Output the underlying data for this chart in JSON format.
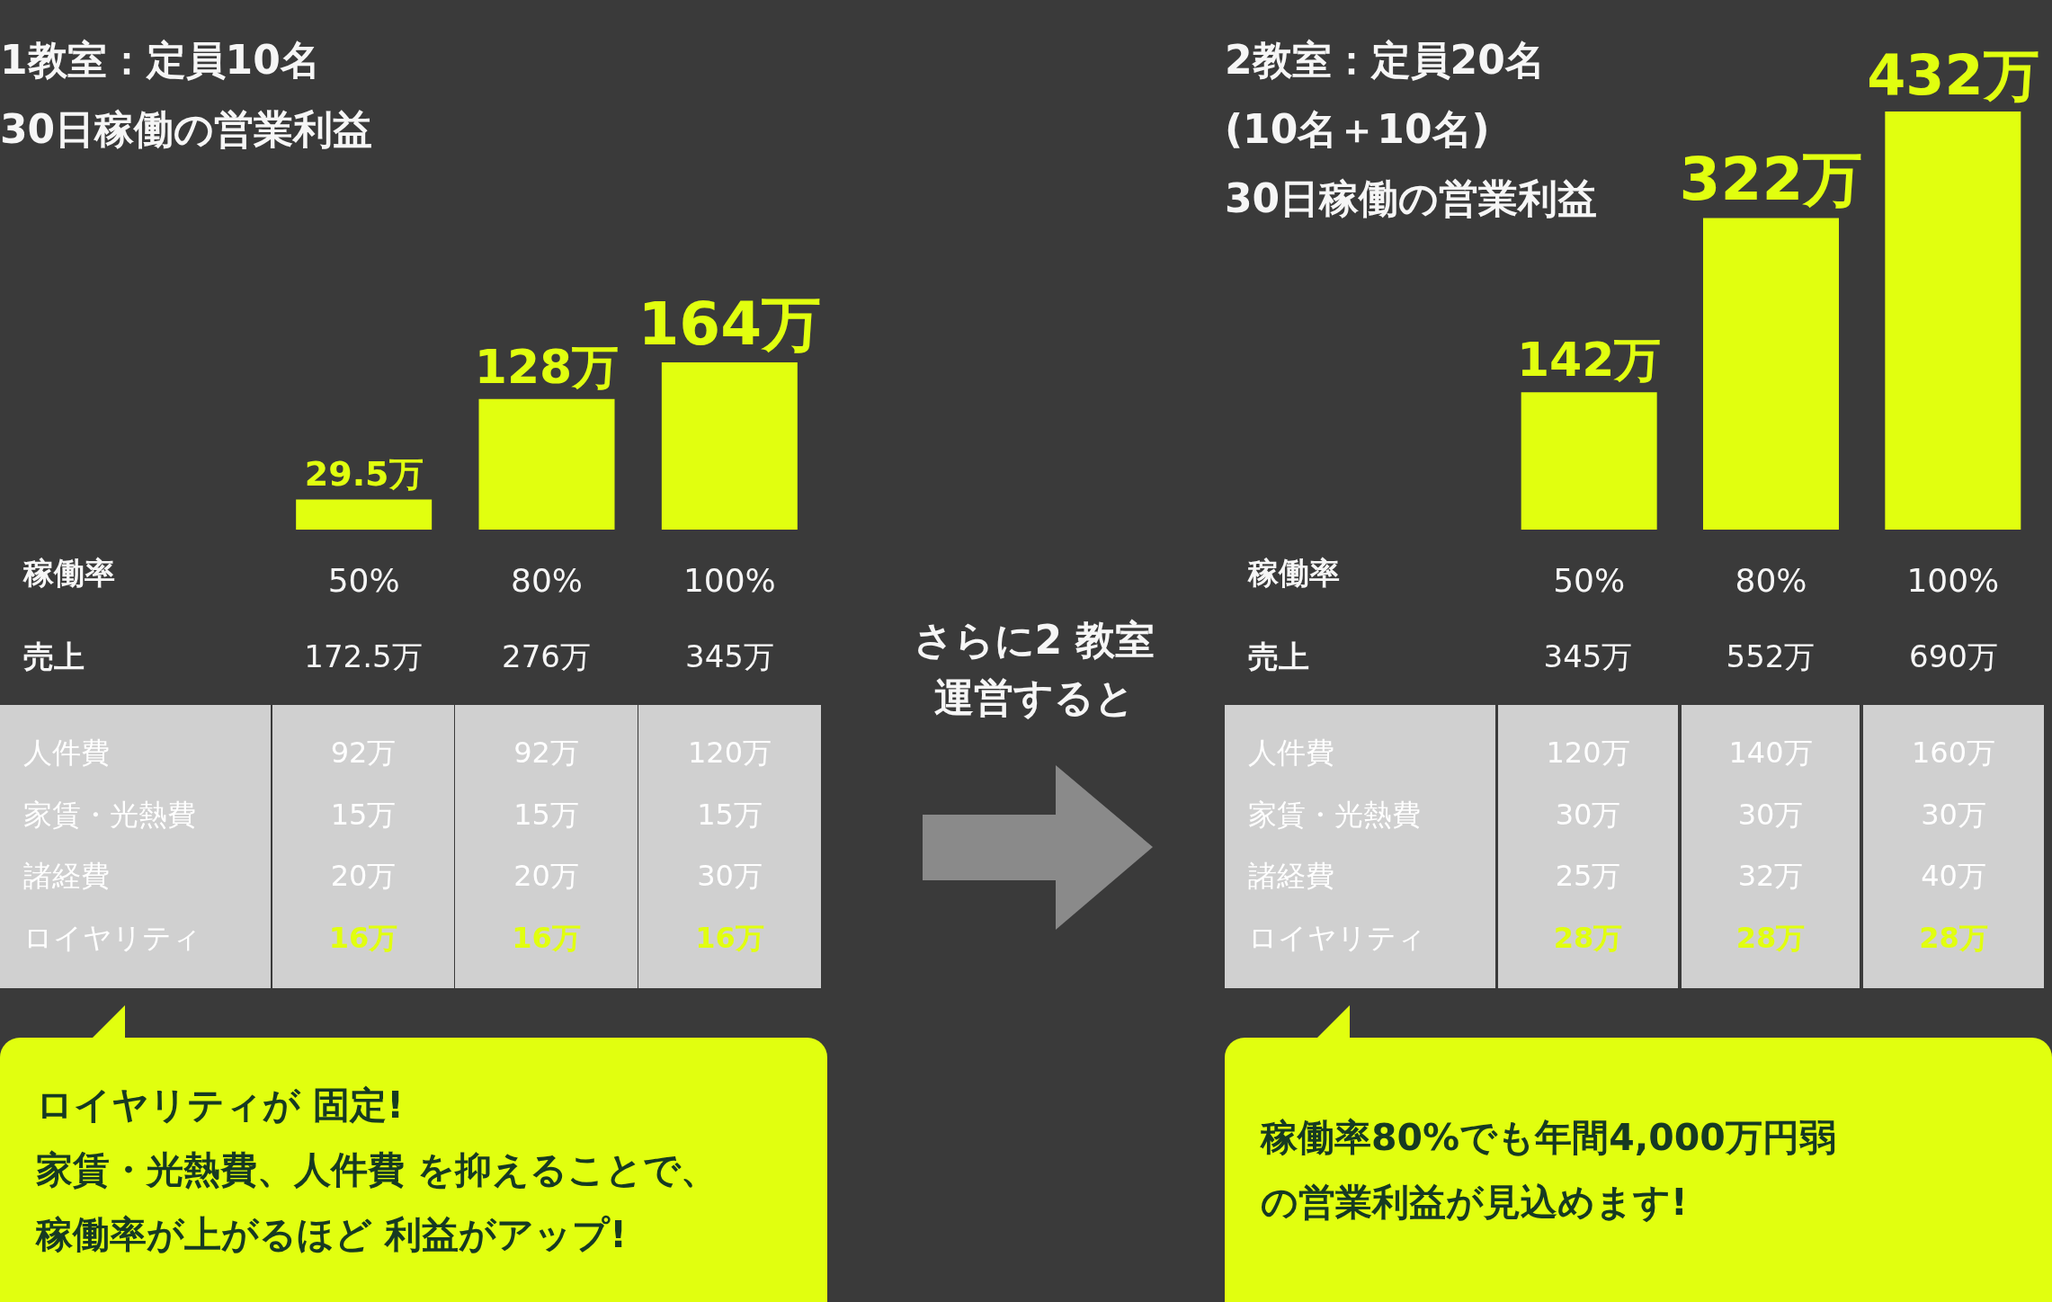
{
  "chart_data": [
    {
      "type": "bar",
      "title": "1教室：定員10名\n30日稼働の営業利益",
      "xlabel": "稼働率",
      "categories": [
        "50%",
        "80%",
        "100%"
      ],
      "values": [
        29.5,
        128,
        164
      ],
      "color": "#e1ff0f",
      "value_labels": [
        "29.5万",
        "128万",
        "164万"
      ],
      "annotations": [
        "売上",
        "172.5万",
        "276万",
        "345万",
        "人件費",
        "92万",
        "92万",
        "120万",
        "家賃・光熱費",
        "15万",
        "15万",
        "15万",
        "諸経費",
        "20万",
        "20万",
        "30万",
        "ロイヤリティ",
        "16万",
        "16万",
        "16万",
        "ロイヤリティが 固定!",
        "家賃・光熱費、人件費 を抑えることで、",
        "稼働率が上がるほど 利益がアップ!"
      ]
    },
    {
      "type": "other",
      "title": "さらに2 教室",
      "subtitle": "運営すると"
    },
    {
      "type": "bar",
      "title": "2教室：定員20名\n(10名＋10名)\n30日稼働の営業利益",
      "xlabel": "稼働率",
      "categories": [
        "50%",
        "80%",
        "100%"
      ],
      "values": [
        142,
        322,
        432
      ],
      "color": "#e1ff0f",
      "value_labels": [
        "142万",
        "322万",
        "432万"
      ],
      "annotations": [
        "売上",
        "345万",
        "552万",
        "690万",
        "人件費",
        "120万",
        "140万",
        "160万",
        "家賃・光熱費",
        "30万",
        "30万",
        "30万",
        "諸経費",
        "25万",
        "32万",
        "40万",
        "ロイヤリティ",
        "28万",
        "28万",
        "28万",
        "稼働率80%でも年間4,000万円弱",
        "の営業利益が見込めます!"
      ]
    }
  ]
}
